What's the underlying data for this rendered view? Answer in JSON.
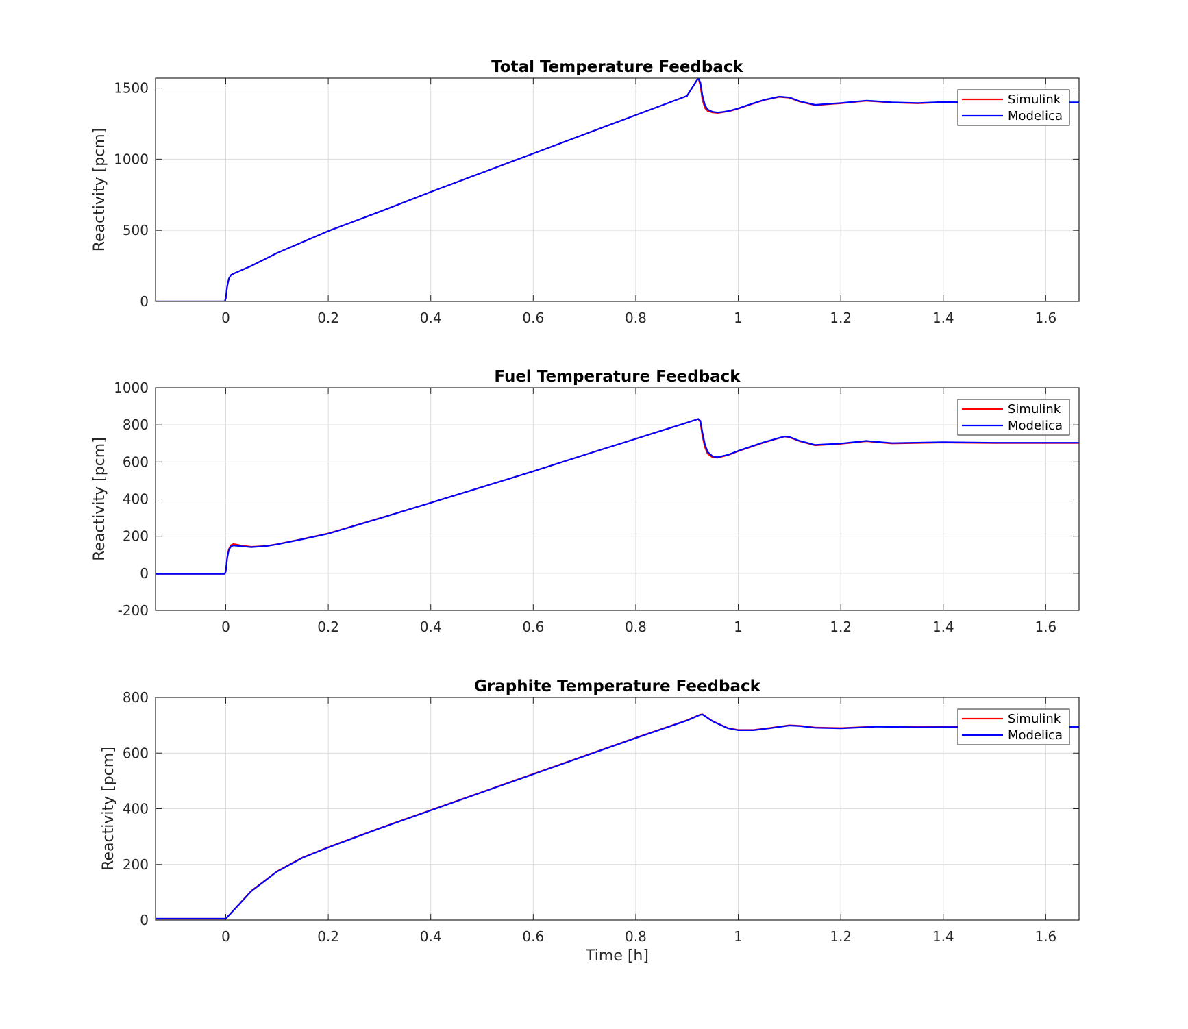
{
  "chart_data": [
    {
      "type": "line",
      "title": "Total Temperature Feedback",
      "xlabel": "",
      "ylabel": "Reactivity [pcm]",
      "xlim": [
        -0.137,
        1.665
      ],
      "ylim": [
        0,
        1570
      ],
      "xticks": [
        0,
        0.2,
        0.4,
        0.6,
        0.8,
        1,
        1.2,
        1.4,
        1.6
      ],
      "yticks": [
        0,
        500,
        1000,
        1500
      ],
      "grid": true,
      "legend": "top-right",
      "series": [
        {
          "name": "Simulink",
          "color": "#ff0000",
          "x": [
            -0.137,
            -0.002,
            0.0,
            0.003,
            0.006,
            0.01,
            0.015,
            0.05,
            0.1,
            0.2,
            0.3,
            0.4,
            0.5,
            0.6,
            0.7,
            0.8,
            0.9,
            0.922,
            0.926,
            0.93,
            0.935,
            0.94,
            0.95,
            0.96,
            0.97,
            0.985,
            1.0,
            1.02,
            1.05,
            1.08,
            1.1,
            1.12,
            1.15,
            1.2,
            1.25,
            1.3,
            1.35,
            1.4,
            1.5,
            1.6,
            1.665
          ],
          "y": [
            0,
            0,
            20,
            110,
            160,
            185,
            195,
            250,
            340,
            495,
            630,
            770,
            905,
            1040,
            1175,
            1310,
            1445,
            1570,
            1520,
            1420,
            1360,
            1340,
            1328,
            1325,
            1330,
            1340,
            1355,
            1380,
            1415,
            1438,
            1432,
            1405,
            1380,
            1393,
            1410,
            1398,
            1393,
            1400,
            1398,
            1398,
            1398
          ]
        },
        {
          "name": "Modelica",
          "color": "#0000ff",
          "x": [
            -0.137,
            -0.002,
            0.0,
            0.003,
            0.006,
            0.01,
            0.015,
            0.05,
            0.1,
            0.2,
            0.3,
            0.4,
            0.5,
            0.6,
            0.7,
            0.8,
            0.9,
            0.922,
            0.926,
            0.93,
            0.935,
            0.94,
            0.95,
            0.96,
            0.97,
            0.985,
            1.0,
            1.02,
            1.05,
            1.08,
            1.1,
            1.12,
            1.15,
            1.2,
            1.25,
            1.3,
            1.35,
            1.4,
            1.5,
            1.6,
            1.665
          ],
          "y": [
            0,
            0,
            20,
            110,
            160,
            185,
            195,
            250,
            340,
            495,
            630,
            770,
            905,
            1040,
            1175,
            1310,
            1445,
            1570,
            1540,
            1450,
            1380,
            1350,
            1333,
            1328,
            1332,
            1342,
            1357,
            1382,
            1417,
            1440,
            1434,
            1407,
            1382,
            1395,
            1412,
            1400,
            1395,
            1402,
            1400,
            1400,
            1400
          ]
        }
      ]
    },
    {
      "type": "line",
      "title": "Fuel Temperature Feedback",
      "xlabel": "",
      "ylabel": "Reactivity [pcm]",
      "xlim": [
        -0.137,
        1.665
      ],
      "ylim": [
        -200,
        1000
      ],
      "xticks": [
        0,
        0.2,
        0.4,
        0.6,
        0.8,
        1,
        1.2,
        1.4,
        1.6
      ],
      "yticks": [
        -200,
        0,
        200,
        400,
        600,
        800,
        1000
      ],
      "grid": true,
      "legend": "top-right",
      "series": [
        {
          "name": "Simulink",
          "color": "#ff0000",
          "x": [
            -0.137,
            -0.002,
            0.0,
            0.003,
            0.006,
            0.01,
            0.015,
            0.03,
            0.05,
            0.08,
            0.1,
            0.15,
            0.2,
            0.3,
            0.4,
            0.5,
            0.6,
            0.7,
            0.8,
            0.9,
            0.922,
            0.926,
            0.93,
            0.935,
            0.94,
            0.95,
            0.96,
            0.98,
            1.0,
            1.05,
            1.09,
            1.1,
            1.12,
            1.15,
            1.2,
            1.25,
            1.3,
            1.4,
            1.5,
            1.6,
            1.665
          ],
          "y": [
            -3,
            -3,
            10,
            90,
            130,
            152,
            158,
            150,
            143,
            148,
            157,
            185,
            215,
            297,
            380,
            465,
            550,
            638,
            725,
            812,
            832,
            815,
            740,
            680,
            645,
            625,
            623,
            637,
            658,
            705,
            737,
            733,
            712,
            690,
            698,
            712,
            700,
            705,
            702,
            702,
            702
          ]
        },
        {
          "name": "Modelica",
          "color": "#0000ff",
          "x": [
            -0.137,
            -0.002,
            0.0,
            0.003,
            0.006,
            0.01,
            0.015,
            0.03,
            0.05,
            0.08,
            0.1,
            0.15,
            0.2,
            0.3,
            0.4,
            0.5,
            0.6,
            0.7,
            0.8,
            0.9,
            0.922,
            0.926,
            0.93,
            0.935,
            0.94,
            0.95,
            0.96,
            0.98,
            1.0,
            1.05,
            1.09,
            1.1,
            1.12,
            1.15,
            1.2,
            1.25,
            1.3,
            1.4,
            1.5,
            1.6,
            1.665
          ],
          "y": [
            -3,
            -3,
            10,
            85,
            125,
            145,
            150,
            146,
            141,
            147,
            156,
            184,
            214,
            296,
            380,
            465,
            550,
            638,
            725,
            812,
            832,
            822,
            760,
            695,
            655,
            630,
            626,
            639,
            660,
            707,
            738,
            735,
            714,
            692,
            700,
            714,
            702,
            707,
            704,
            704,
            704
          ]
        }
      ]
    },
    {
      "type": "line",
      "title": "Graphite Temperature Feedback",
      "xlabel": "Time [h]",
      "ylabel": "Reactivity [pcm]",
      "xlim": [
        -0.137,
        1.665
      ],
      "ylim": [
        0,
        800
      ],
      "xticks": [
        0,
        0.2,
        0.4,
        0.6,
        0.8,
        1,
        1.2,
        1.4,
        1.6
      ],
      "yticks": [
        0,
        200,
        400,
        600,
        800
      ],
      "grid": true,
      "legend": "top-right",
      "series": [
        {
          "name": "Simulink",
          "color": "#ff0000",
          "x": [
            -0.137,
            0.0,
            0.02,
            0.05,
            0.1,
            0.15,
            0.2,
            0.3,
            0.4,
            0.5,
            0.6,
            0.7,
            0.8,
            0.9,
            0.925,
            0.93,
            0.95,
            0.98,
            1.0,
            1.03,
            1.06,
            1.1,
            1.12,
            1.15,
            1.2,
            1.27,
            1.35,
            1.45,
            1.55,
            1.665
          ],
          "y": [
            5,
            5,
            45,
            105,
            175,
            225,
            262,
            330,
            395,
            460,
            525,
            590,
            655,
            718,
            738,
            740,
            715,
            690,
            683,
            683,
            690,
            700,
            698,
            692,
            690,
            696,
            694,
            695,
            695,
            695
          ]
        },
        {
          "name": "Modelica",
          "color": "#0000ff",
          "x": [
            -0.137,
            0.0,
            0.02,
            0.05,
            0.1,
            0.15,
            0.2,
            0.3,
            0.4,
            0.5,
            0.6,
            0.7,
            0.8,
            0.9,
            0.925,
            0.93,
            0.95,
            0.98,
            1.0,
            1.03,
            1.06,
            1.1,
            1.12,
            1.15,
            1.2,
            1.27,
            1.35,
            1.45,
            1.55,
            1.665
          ],
          "y": [
            5,
            5,
            44,
            104,
            174,
            224,
            261,
            329,
            394,
            459,
            524,
            589,
            654,
            717,
            737,
            739,
            714,
            689,
            682,
            682,
            689,
            699,
            697,
            691,
            689,
            695,
            693,
            694,
            694,
            694
          ]
        }
      ]
    }
  ]
}
